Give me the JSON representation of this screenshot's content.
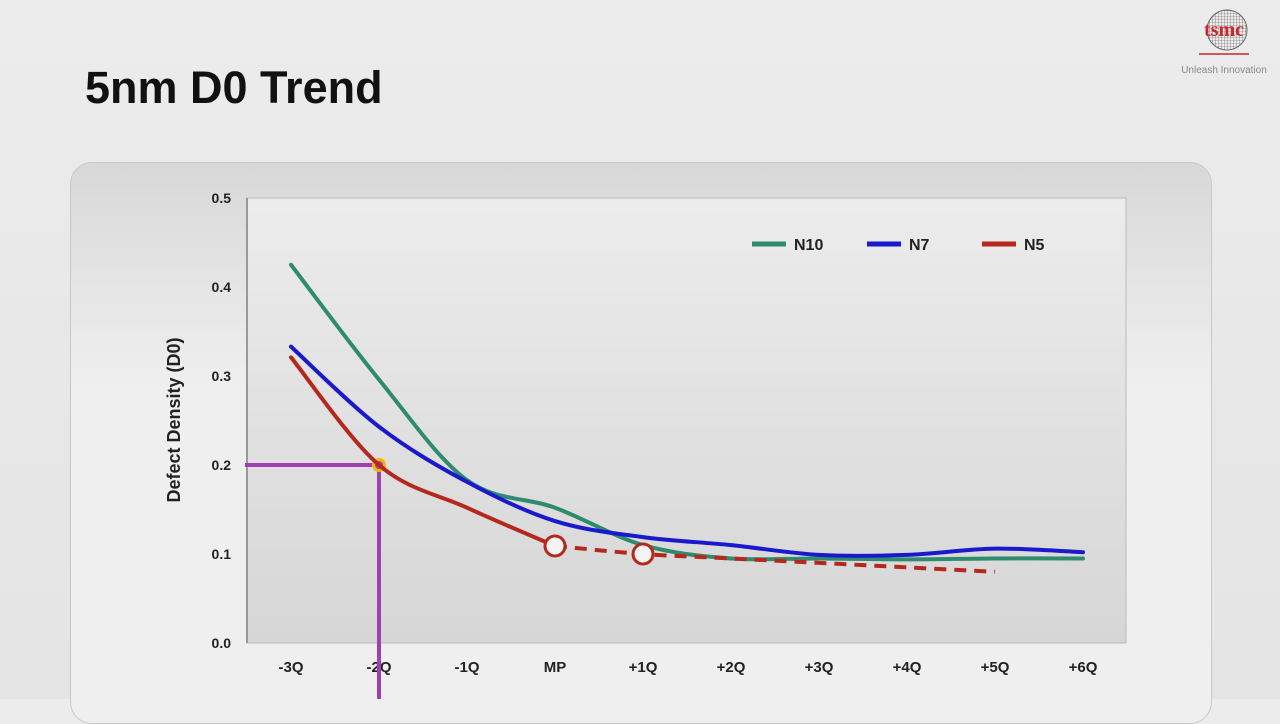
{
  "page": {
    "title": "5nm D0 Trend"
  },
  "logo": {
    "text": "tsmc",
    "tagline": "Unleash Innovation"
  },
  "chart_data": {
    "type": "line",
    "title": "",
    "xlabel": "",
    "ylabel": "Defect Density (D0)",
    "categories": [
      "-3Q",
      "-2Q",
      "-1Q",
      "MP",
      "+1Q",
      "+2Q",
      "+3Q",
      "+4Q",
      "+5Q",
      "+6Q"
    ],
    "ylim": [
      0,
      0.5
    ],
    "yticks": [
      "0.0",
      "0.1",
      "0.2",
      "0.3",
      "0.4",
      "0.5"
    ],
    "grid": false,
    "legend": "top-right",
    "series": [
      {
        "name": "N10",
        "color": "#2e8b6e",
        "values": [
          0.425,
          0.296,
          0.183,
          0.152,
          0.11,
          0.095,
          0.095,
          0.094,
          0.095,
          0.095
        ]
      },
      {
        "name": "N7",
        "color": "#1a1acc",
        "values": [
          0.333,
          0.243,
          0.181,
          0.137,
          0.119,
          0.11,
          0.099,
          0.099,
          0.106,
          0.102
        ]
      },
      {
        "name": "N5",
        "color": "#b5281c",
        "values": [
          0.321,
          0.2,
          0.152,
          0.109,
          0.1,
          0.095,
          0.09,
          0.085,
          0.08,
          null
        ],
        "dashed_from": "MP",
        "markers": [
          "MP",
          "+1Q"
        ]
      }
    ],
    "highlight": {
      "x": "-2Q",
      "y": 0.2,
      "line_color": "#a040b0",
      "marker_color": "#f5b800"
    }
  }
}
